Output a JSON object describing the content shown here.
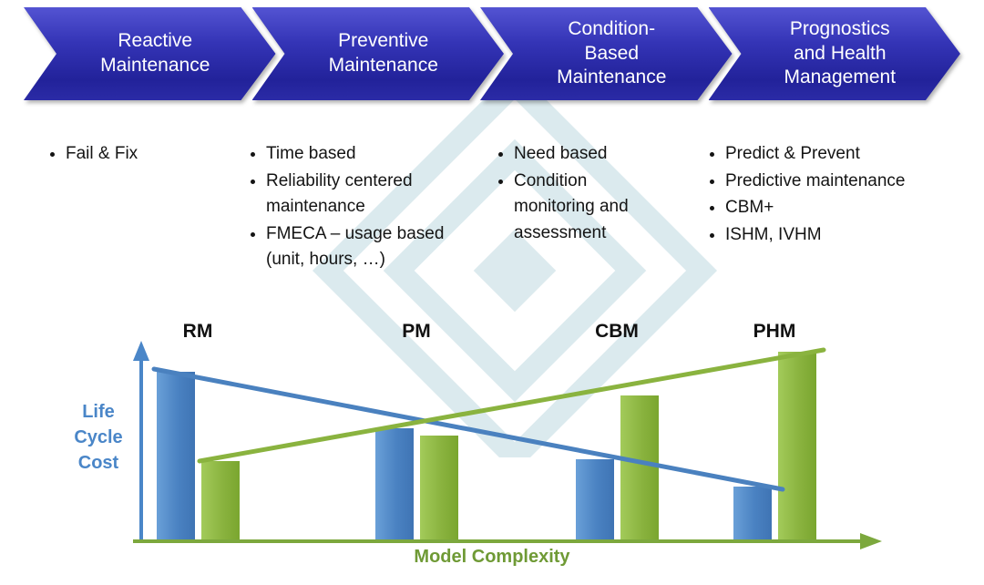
{
  "process_arrows": [
    {
      "label": "Reactive\nMaintenance"
    },
    {
      "label": "Preventive\nMaintenance"
    },
    {
      "label": "Condition-\nBased\nMaintenance"
    },
    {
      "label": "Prognostics\nand Health\nManagement"
    }
  ],
  "bullet_columns": [
    {
      "bullets": [
        "Fail & Fix"
      ]
    },
    {
      "bullets": [
        "Time based",
        "Reliability centered maintenance",
        "FMECA – usage based (unit, hours, …)"
      ]
    },
    {
      "bullets": [
        "Need based",
        "Condition monitoring and assessment"
      ]
    },
    {
      "bullets": [
        "Predict & Prevent",
        "Predictive maintenance",
        "CBM+",
        "ISHM, IVHM"
      ]
    }
  ],
  "chart_data": {
    "type": "bar",
    "categories": [
      "RM",
      "PM",
      "CBM",
      "PHM"
    ],
    "series": [
      {
        "name": "Life Cycle Cost",
        "color_hex": "#4a81bf",
        "values": [
          93,
          62,
          45,
          30
        ]
      },
      {
        "name": "Model Complexity",
        "color_hex": "#8ab33f",
        "values": [
          44,
          58,
          80,
          104
        ]
      }
    ],
    "trend_lines": [
      {
        "name": "life-cycle-cost-trend",
        "series": "Life Cycle Cost",
        "direction": "decreasing",
        "color_hex": "#4a81bf"
      },
      {
        "name": "model-complexity-trend",
        "series": "Model Complexity",
        "direction": "increasing",
        "color_hex": "#8ab33f"
      }
    ],
    "ylabel": "Life Cycle Cost",
    "xlabel": "Model Complexity",
    "ylim": [
      0,
      110
    ],
    "grid": false,
    "legend_position": "none"
  },
  "colors": {
    "arrow_blue": "#2d2da8",
    "bar_blue": "#4a86c8",
    "bar_green": "#8ab33f",
    "axis_blue": "#4a86c8",
    "axis_green": "#7ca83d",
    "watermark": "#b9d6de"
  }
}
